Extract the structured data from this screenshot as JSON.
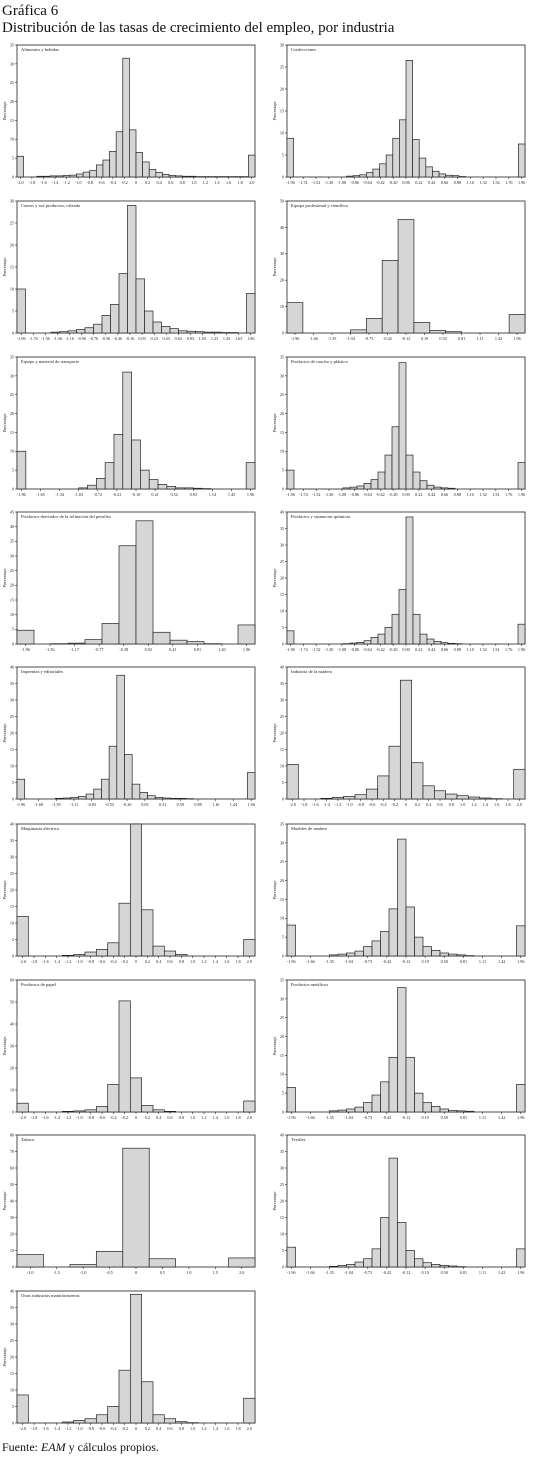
{
  "figure": {
    "title": "Gráfica 6",
    "subtitle": "Distribución de las tasas de crecimiento del empleo, por industria",
    "source_prefix": "Fuente: ",
    "source_italic": "EAM",
    "source_suffix": " y cálculos propios."
  },
  "chart_data": [
    {
      "type": "bar",
      "title": "Alimentos y bebidas",
      "ylabel": "Porcentaje",
      "ylim": [
        0,
        35
      ],
      "yticks": [
        0,
        5,
        10,
        15,
        20,
        25,
        30,
        35
      ],
      "xticks": [
        "-2.0",
        "-1.8",
        "-1.6",
        "-1.4",
        "-1.2",
        "-1.0",
        "-0.8",
        "-0.6",
        "-0.4",
        "-0.2",
        "0",
        "0.2",
        "0.4",
        "0.6",
        "0.8",
        "1.0",
        "1.2",
        "1.4",
        "1.6",
        "1.8",
        "2.0"
      ],
      "values": [
        5.5,
        0,
        0,
        0.2,
        0.2,
        0.3,
        0.3,
        0.4,
        0.5,
        0.8,
        1.3,
        1.7,
        3.2,
        4.5,
        6.8,
        12,
        31.5,
        12.5,
        6.5,
        4,
        2,
        1.2,
        0.7,
        0.4,
        0.3,
        0.2,
        0.2,
        0.1,
        0.1,
        0.1,
        0.1,
        0.1,
        0.1,
        0.1,
        0.1,
        5.8
      ]
    },
    {
      "type": "bar",
      "title": "Confecciones",
      "ylabel": "Porcentaje",
      "ylim": [
        0,
        30
      ],
      "yticks": [
        0,
        5,
        10,
        15,
        20,
        25,
        30
      ],
      "xticks": [
        "-1.96",
        "-1.74",
        "-1.52",
        "-1.30",
        "-1.08",
        "-0.86",
        "-0.64",
        "-0.42",
        "-0.20",
        "0.06",
        "0.22",
        "0.44",
        "0.66",
        "0.88",
        "1.10",
        "1.32",
        "1.54",
        "1.76",
        "1.96"
      ],
      "values": [
        8.8,
        0,
        0,
        0,
        0,
        0,
        0,
        0,
        0,
        0.2,
        0.3,
        0.5,
        1,
        1.8,
        3,
        5,
        8.8,
        13,
        26.5,
        8.5,
        4.3,
        2.3,
        1.3,
        0.7,
        0.4,
        0.3,
        0.1,
        0,
        0,
        0,
        0,
        0,
        0,
        0,
        0,
        7.5
      ]
    },
    {
      "type": "bar",
      "title": "Cueros y sus productos; calzado",
      "ylabel": "Porcentaje",
      "ylim": [
        0,
        30
      ],
      "yticks": [
        0,
        5,
        10,
        15,
        20,
        25,
        30
      ],
      "xticks": [
        "-1.96",
        "-1.76",
        "-1.56",
        "-1.36",
        "-1.16",
        "-0.96",
        "-0.76",
        "-0.56",
        "-0.36",
        "-0.16",
        "0.03",
        "0.23",
        "0.43",
        "0.63",
        "0.83",
        "1.03",
        "1.23",
        "1.43",
        "1.63",
        "1.96"
      ],
      "values": [
        10,
        0,
        0,
        0,
        0.2,
        0.3,
        0.5,
        0.8,
        1.2,
        2,
        4,
        6.5,
        13.5,
        29,
        12.3,
        5,
        2.5,
        1.5,
        1,
        0.5,
        0.4,
        0.3,
        0.2,
        0.2,
        0.1,
        0.1,
        0,
        9
      ]
    },
    {
      "type": "bar",
      "title": "Equipo profesional y científico",
      "ylabel": "Porcentaje",
      "ylim": [
        0,
        50
      ],
      "yticks": [
        0,
        10,
        20,
        30,
        40,
        50
      ],
      "xticks": [
        "-1.96",
        "-1.66",
        "-1.35",
        "-1.04",
        "-0.73",
        "-0.42",
        "-0.12",
        "0.19",
        "0.50",
        "0.81",
        "1.11",
        "1.42",
        "1.96"
      ],
      "values": [
        11.5,
        0,
        0,
        0,
        1.2,
        5.5,
        27.5,
        43,
        4,
        1,
        0.5,
        0,
        0,
        0,
        7
      ]
    },
    {
      "type": "bar",
      "title": "Equipo y material de transporte",
      "ylabel": "Porcentaje",
      "ylim": [
        0,
        35
      ],
      "yticks": [
        0,
        5,
        10,
        15,
        20,
        25,
        30,
        35
      ],
      "xticks": [
        "-1.96",
        "-1.65",
        "-1.34",
        "-1.03",
        "-0.72",
        "-0.41",
        "-0.10",
        "0.21",
        "0.52",
        "0.83",
        "1.14",
        "1.45",
        "1.96"
      ],
      "values": [
        10,
        0,
        0,
        0,
        0,
        0,
        0,
        0.3,
        1,
        2.8,
        7,
        14.5,
        31,
        13,
        5,
        2.5,
        1.2,
        0.7,
        0.3,
        0.3,
        0.2,
        0.1,
        0,
        0,
        0,
        0,
        7
      ]
    },
    {
      "type": "bar",
      "title": "Productos de caucho y plástico",
      "ylabel": "Porcentaje",
      "ylim": [
        0,
        35
      ],
      "yticks": [
        0,
        5,
        10,
        15,
        20,
        25,
        30,
        35
      ],
      "xticks": [
        "-1.96",
        "-1.74",
        "-1.52",
        "-1.30",
        "-1.08",
        "-0.86",
        "-0.64",
        "-0.42",
        "-0.20",
        "0.00",
        "0.22",
        "0.44",
        "0.66",
        "0.88",
        "1.10",
        "1.32",
        "1.54",
        "1.76",
        "1.96"
      ],
      "values": [
        5,
        0,
        0,
        0,
        0,
        0,
        0,
        0,
        0.3,
        0.5,
        0.8,
        1.5,
        2.5,
        4.5,
        9,
        16.5,
        33.5,
        9,
        4.5,
        2.2,
        1,
        0.5,
        0.3,
        0.2,
        0,
        0,
        0,
        0,
        0,
        0,
        0,
        0,
        0,
        7
      ]
    },
    {
      "type": "bar",
      "title": "Productos derivados de la refinación del petróleo",
      "ylabel": "Porcentaje",
      "ylim": [
        0,
        45
      ],
      "yticks": [
        0,
        5,
        10,
        15,
        20,
        25,
        30,
        35,
        40,
        45
      ],
      "xticks": [
        "-1.96",
        "-1.56",
        "-1.17",
        "-0.77",
        "-0.38",
        "0.02",
        "0.41",
        "0.81",
        "1.20",
        "1.96"
      ],
      "values": [
        4.7,
        0,
        0.1,
        0.3,
        1.5,
        7,
        33.5,
        42,
        4,
        1.3,
        0.8,
        0.1,
        0,
        6.5
      ]
    },
    {
      "type": "bar",
      "title": "Productos y sustancias químicas",
      "ylabel": "Porcentaje",
      "ylim": [
        0,
        40
      ],
      "yticks": [
        0,
        5,
        10,
        15,
        20,
        25,
        30,
        35,
        40
      ],
      "xticks": [
        "-1.96",
        "-1.74",
        "-1.52",
        "-1.30",
        "-1.08",
        "-0.86",
        "-0.64",
        "-0.42",
        "-0.20",
        "0.00",
        "0.22",
        "0.44",
        "0.66",
        "0.88",
        "1.10",
        "1.32",
        "1.54",
        "1.76",
        "1.96"
      ],
      "values": [
        4,
        0,
        0,
        0,
        0,
        0,
        0,
        0,
        0.1,
        0.3,
        0.5,
        1,
        2,
        3,
        5,
        9,
        16.5,
        38.5,
        9,
        3,
        1.5,
        0.8,
        0.4,
        0.2,
        0.1,
        0,
        0,
        0,
        0,
        0,
        0,
        0,
        0,
        6
      ]
    },
    {
      "type": "bar",
      "title": "Imprentas y editoriales",
      "ylabel": "Porcentaje",
      "ylim": [
        0,
        40
      ],
      "yticks": [
        0,
        5,
        10,
        15,
        20,
        25,
        30,
        35,
        40
      ],
      "xticks": [
        "-1.96",
        "-1.68",
        "-1.39",
        "-1.11",
        "-0.83",
        "-0.54",
        "-0.26",
        "0.03",
        "0.31",
        "0.59",
        "0.88",
        "1.16",
        "1.44",
        "1.96"
      ],
      "values": [
        6,
        0,
        0,
        0,
        0,
        0.2,
        0.3,
        0.5,
        0.8,
        1.5,
        3,
        6,
        16,
        37.5,
        13.5,
        4.5,
        2,
        1,
        0.5,
        0.3,
        0.2,
        0.2,
        0.1,
        0,
        0,
        0,
        0,
        0,
        0,
        0,
        8
      ]
    },
    {
      "type": "bar",
      "title": "Industria de la madera",
      "ylabel": "Porcentaje",
      "ylim": [
        0,
        40
      ],
      "yticks": [
        0,
        5,
        10,
        15,
        20,
        25,
        30,
        35,
        40
      ],
      "xticks": [
        "-2.0",
        "-1.8",
        "-1.6",
        "-1.4",
        "-1.2",
        "-1.0",
        "-0.8",
        "-0.6",
        "-0.4",
        "-0.2",
        "0",
        "0.2",
        "0.4",
        "0.6",
        "0.8",
        "1.0",
        "1.2",
        "1.4",
        "1.6",
        "1.8",
        "2.0"
      ],
      "values": [
        10.5,
        0,
        0,
        0.2,
        0.5,
        0.8,
        1.3,
        3,
        7,
        16,
        36,
        11,
        4,
        2.5,
        1.5,
        1,
        0.6,
        0.3,
        0.1,
        0,
        9
      ]
    },
    {
      "type": "bar",
      "title": "Maquinaria eléctrica",
      "ylabel": "Porcentaje",
      "ylim": [
        0,
        40
      ],
      "yticks": [
        0,
        5,
        10,
        15,
        20,
        25,
        30,
        35,
        40
      ],
      "xticks": [
        "-2.0",
        "-1.8",
        "-1.6",
        "-1.4",
        "-1.2",
        "-1.0",
        "-0.8",
        "-0.6",
        "-0.4",
        "-0.2",
        "0",
        "0.2",
        "0.4",
        "0.6",
        "0.8",
        "1.0",
        "1.2",
        "1.4",
        "1.6",
        "1.8",
        "2.0"
      ],
      "values": [
        12,
        0,
        0,
        0,
        0.2,
        0.5,
        1.2,
        2,
        4,
        16,
        40,
        14,
        3,
        1.5,
        0.5,
        0,
        0,
        0,
        0,
        0,
        5
      ]
    },
    {
      "type": "bar",
      "title": "Muebles de madera",
      "ylabel": "Porcentaje",
      "ylim": [
        0,
        35
      ],
      "yticks": [
        0,
        5,
        10,
        15,
        20,
        25,
        30,
        35
      ],
      "xticks": [
        "-1.96",
        "-1.66",
        "-1.35",
        "-1.04",
        "-0.73",
        "-0.42",
        "-0.12",
        "0.19",
        "0.50",
        "0.81",
        "1.11",
        "1.42",
        "1.96"
      ],
      "values": [
        8.2,
        0,
        0,
        0,
        0,
        0.3,
        0.5,
        0.8,
        1.3,
        2.5,
        4,
        6.5,
        12.5,
        31,
        13,
        5,
        2.5,
        1.5,
        0.8,
        0.5,
        0.3,
        0.1,
        0,
        0,
        0,
        0,
        0,
        8
      ]
    },
    {
      "type": "bar",
      "title": "Productos de papel",
      "ylabel": "Porcentaje",
      "ylim": [
        0,
        60
      ],
      "yticks": [
        0,
        10,
        20,
        30,
        40,
        50,
        60
      ],
      "xticks": [
        "-2.0",
        "-1.8",
        "-1.6",
        "-1.4",
        "-1.2",
        "-1.0",
        "-0.8",
        "-0.6",
        "-0.4",
        "-0.2",
        "0",
        "0.2",
        "0.4",
        "0.6",
        "0.8",
        "1.0",
        "1.2",
        "1.4",
        "1.6",
        "1.8",
        "2.0"
      ],
      "values": [
        4,
        0,
        0,
        0,
        0.3,
        0.5,
        1,
        2.5,
        12.5,
        50.5,
        15.5,
        3,
        1,
        0.3,
        0,
        0,
        0,
        0,
        0,
        0,
        5
      ]
    },
    {
      "type": "bar",
      "title": "Productos metálicos",
      "ylabel": "Porcentaje",
      "ylim": [
        0,
        35
      ],
      "yticks": [
        0,
        5,
        10,
        15,
        20,
        25,
        30,
        35
      ],
      "xticks": [
        "-1.96",
        "-1.66",
        "-1.35",
        "-1.04",
        "-0.73",
        "-0.42",
        "-0.12",
        "0.19",
        "0.50",
        "0.81",
        "1.11",
        "1.42",
        "1.96"
      ],
      "values": [
        6.5,
        0,
        0,
        0,
        0,
        0.3,
        0.5,
        0.8,
        1.3,
        2.5,
        4.5,
        8,
        14.5,
        33,
        14.5,
        5,
        2.5,
        1.5,
        0.8,
        0.4,
        0.3,
        0.2,
        0,
        0,
        0,
        0,
        0,
        7.3
      ]
    },
    {
      "type": "bar",
      "title": "Tabaco",
      "ylabel": "Porcentaje",
      "ylim": [
        0,
        80
      ],
      "yticks": [
        0,
        10,
        20,
        30,
        40,
        50,
        60,
        70,
        80
      ],
      "xticks": [
        "-2.0",
        "-1.5",
        "-1.0",
        "-0.5",
        "0",
        "0.5",
        "1.0",
        "1.5",
        "2.0"
      ],
      "values": [
        7.5,
        0,
        1.5,
        9.5,
        72,
        5,
        0,
        0,
        5.5
      ]
    },
    {
      "type": "bar",
      "title": "Textiles",
      "ylabel": "Porcentaje",
      "ylim": [
        0,
        40
      ],
      "yticks": [
        0,
        5,
        10,
        15,
        20,
        25,
        30,
        35,
        40
      ],
      "xticks": [
        "-1.96",
        "-1.66",
        "-1.35",
        "-1.04",
        "-0.73",
        "-0.42",
        "-0.12",
        "0.19",
        "0.50",
        "0.81",
        "1.11",
        "1.42",
        "1.96"
      ],
      "values": [
        6,
        0,
        0,
        0,
        0,
        0.2,
        0.5,
        0.8,
        1.5,
        2.5,
        5.5,
        15,
        33,
        13.5,
        5,
        2.5,
        1.3,
        0.8,
        0.5,
        0.3,
        0.1,
        0,
        0,
        0,
        0,
        0,
        0,
        5.5
      ]
    },
    {
      "type": "bar",
      "title": "Otras industrias manufactureras",
      "ylabel": "Porcentaje",
      "ylim": [
        0,
        40
      ],
      "yticks": [
        0,
        5,
        10,
        15,
        20,
        25,
        30,
        35,
        40
      ],
      "xticks": [
        "-2.0",
        "-1.8",
        "-1.6",
        "-1.4",
        "-1.2",
        "-1.0",
        "-0.8",
        "-0.6",
        "-0.4",
        "-0.2",
        "0",
        "0.2",
        "0.4",
        "0.6",
        "0.8",
        "1.0",
        "1.2",
        "1.4",
        "1.6",
        "1.8",
        "2.0"
      ],
      "values": [
        8.5,
        0,
        0,
        0,
        0.3,
        0.8,
        1.3,
        2.5,
        5,
        16,
        39,
        12.5,
        2.5,
        1.3,
        0.4,
        0.1,
        0,
        0,
        0,
        0,
        7.5
      ]
    }
  ]
}
